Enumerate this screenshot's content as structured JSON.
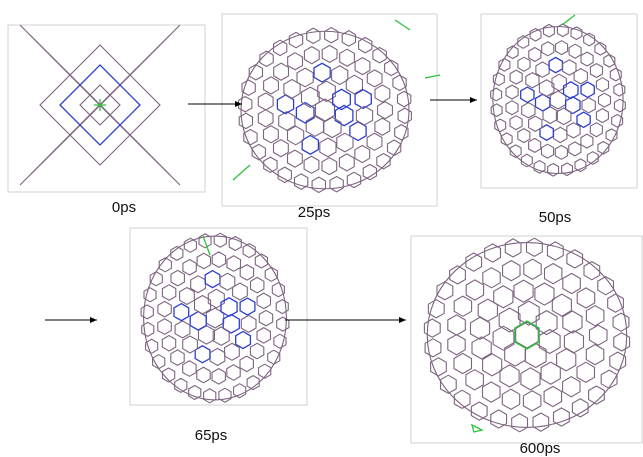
{
  "panels": [
    {
      "label": "0ps"
    },
    {
      "label": "25ps"
    },
    {
      "label": "50ps"
    },
    {
      "label": "65ps"
    },
    {
      "label": "600ps"
    }
  ]
}
